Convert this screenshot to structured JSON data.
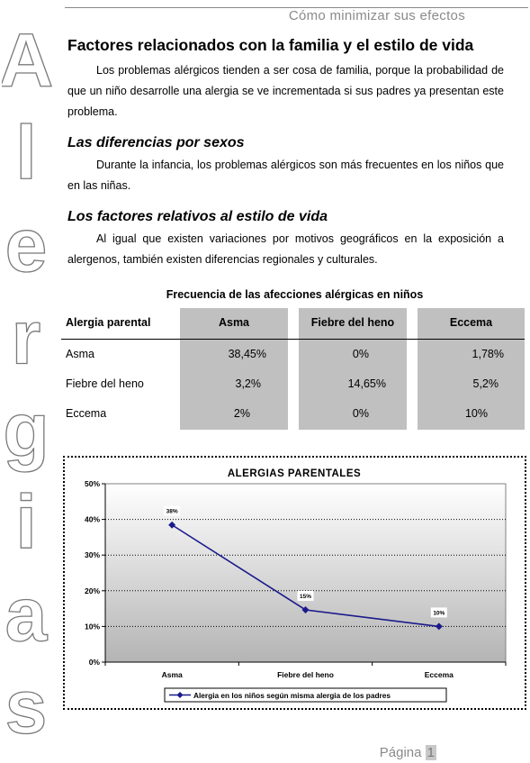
{
  "header": {
    "title": "Cómo minimizar sus efectos"
  },
  "side_title": {
    "letters": [
      "A",
      "l",
      "e",
      "r",
      "g",
      "i",
      "a",
      "s"
    ]
  },
  "sections": [
    {
      "heading": "Factores relacionados con la familia y el estilo de vida",
      "text": "Los problemas alérgicos tienden a ser cosa de familia, porque la probabilidad de que un niño desarrolle una alergia se ve incrementada si sus padres ya presentan este problema."
    },
    {
      "heading": "Las diferencias por sexos",
      "text": "Durante la infancia, los problemas alérgicos son más frecuentes en los niños que en las niñas."
    },
    {
      "heading": "Los factores relativos al estilo de vida",
      "text": "Al igual que existen variaciones por motivos geográficos en la exposición a alergenos, también existen diferencias regionales y culturales."
    }
  ],
  "table": {
    "title": "Frecuencia de las afecciones alérgicas en niños",
    "headers": [
      "Alergia parental",
      "Asma",
      "Fiebre del heno",
      "Eccema"
    ],
    "rows": [
      [
        "Asma",
        "38,45%",
        "0%",
        "1,78%"
      ],
      [
        "Fiebre del heno",
        "3,2%",
        "14,65%",
        "5,2%"
      ],
      [
        "Eccema",
        "2%",
        "0%",
        "10%"
      ]
    ]
  },
  "chart_data": {
    "type": "line",
    "title": "ALERGIAS PARENTALES",
    "categories": [
      "Asma",
      "Fiebre del heno",
      "Eccema"
    ],
    "series": [
      {
        "name": "Alergia en los niños según misma alergia de los padres",
        "values": [
          38.45,
          14.65,
          10
        ],
        "labels": [
          "38%",
          "15%",
          "10%"
        ],
        "color": "#1a1a8c"
      }
    ],
    "ylim": [
      0,
      50
    ],
    "yticks": [
      "0%",
      "10%",
      "20%",
      "30%",
      "40%",
      "50%"
    ],
    "grid": true,
    "legend": "bottom"
  },
  "footer": {
    "page_label": "Página",
    "page_number": "1"
  }
}
